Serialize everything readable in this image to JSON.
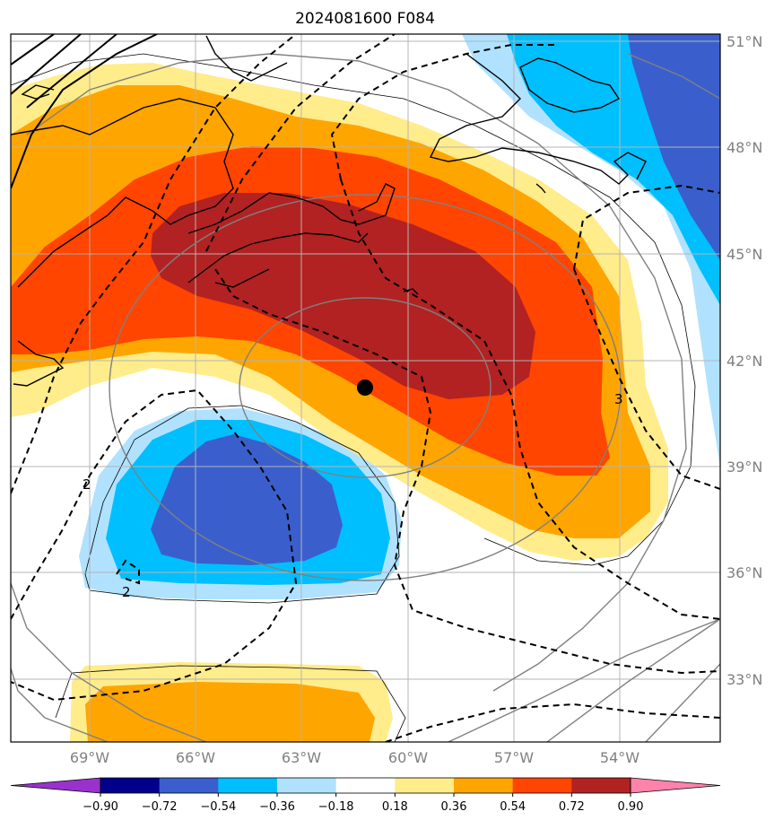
{
  "title": "2024081600 F084",
  "lat_labels": [
    "51°N",
    "48°N",
    "45°N",
    "42°N",
    "39°N",
    "36°N",
    "33°N"
  ],
  "lon_labels": [
    "69°W",
    "66°W",
    "63°W",
    "60°W",
    "57°W",
    "54°W"
  ],
  "contour_labels": [
    "2",
    "2",
    "3"
  ],
  "colorbar": {
    "ticks": [
      "−0.90",
      "−0.72",
      "−0.54",
      "−0.36",
      "−0.18",
      "0.18",
      "0.36",
      "0.54",
      "0.72",
      "0.90"
    ],
    "colors": [
      "#9932cc",
      "#00008b",
      "#3a5fcd",
      "#00bfff",
      "#b0e2ff",
      "#ffffff",
      "#ffec8b",
      "#ffa500",
      "#ff4500",
      "#b22222",
      "#ff82ab"
    ]
  },
  "colors": {
    "neg_strong": "#3a5fcd",
    "neg_mid": "#00bfff",
    "neg_weak": "#b0e2ff",
    "pos_weak": "#ffec8b",
    "pos_mid": "#ffa500",
    "pos_strong": "#ff4500",
    "pos_max": "#b22222"
  }
}
